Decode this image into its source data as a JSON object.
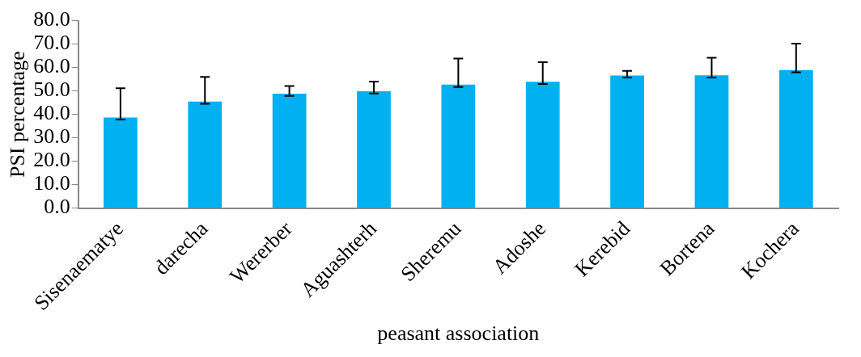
{
  "chart_data": {
    "type": "bar",
    "xlabel": "peasant association",
    "ylabel": "PSI percentage",
    "categories": [
      "Sisenaematye",
      "darecha",
      "Wererber",
      "Aguashterh",
      "Sheremu",
      "Adoshe",
      "Kerebid",
      "Bortena",
      "Kochera"
    ],
    "values": [
      38.7,
      45.5,
      48.8,
      49.9,
      52.7,
      53.9,
      56.6,
      56.7,
      58.9
    ],
    "errors": [
      [
        37.8,
        51.2
      ],
      [
        44.5,
        56.0
      ],
      [
        47.9,
        52.1
      ],
      [
        48.9,
        54.0
      ],
      [
        51.7,
        63.8
      ],
      [
        53.0,
        62.3
      ],
      [
        55.7,
        58.6
      ],
      [
        55.7,
        64.2
      ],
      [
        58.0,
        70.2
      ]
    ],
    "color": "#00b0f0",
    "ylim": [
      0,
      80
    ],
    "yticks": [
      {
        "value": 0,
        "label": "0.0"
      },
      {
        "value": 10,
        "label": "10.0"
      },
      {
        "value": 20,
        "label": "20.0"
      },
      {
        "value": 30,
        "label": "30.0"
      },
      {
        "value": 40,
        "label": "40.0"
      },
      {
        "value": 50,
        "label": "50.0"
      },
      {
        "value": 60,
        "label": "60.0"
      },
      {
        "value": 70,
        "label": "70.0"
      },
      {
        "value": 80,
        "label": "80.0"
      }
    ],
    "grid": false,
    "legend": false
  }
}
